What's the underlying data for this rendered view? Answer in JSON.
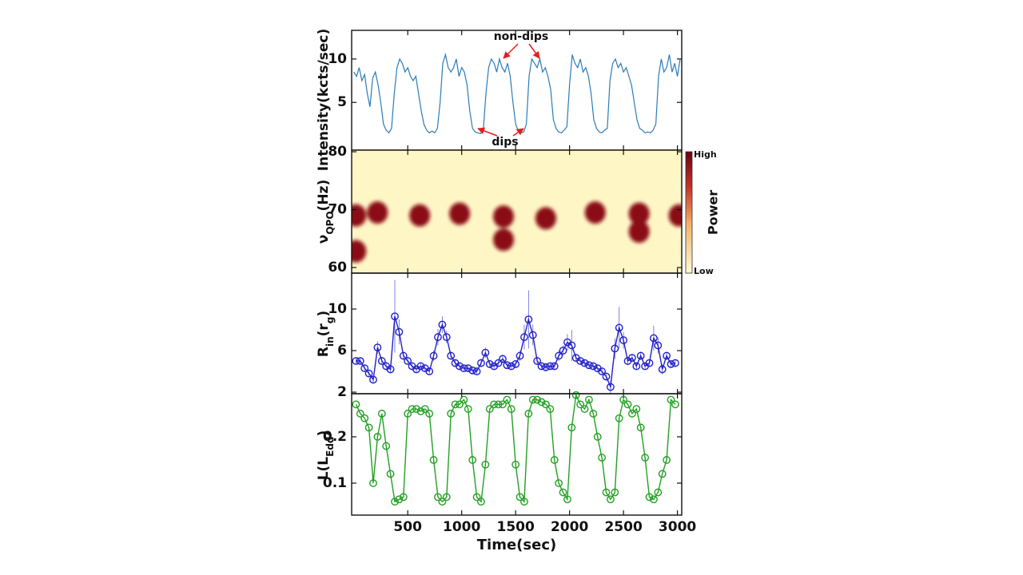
{
  "chart_data": [
    {
      "type": "line",
      "ylabel": [
        "Intensity(kcts/sec)"
      ],
      "color": "#2b7bb9",
      "xlim": [
        -20,
        3040
      ],
      "ylim": [
        -0.5,
        13.3
      ],
      "yticks": [
        5,
        10
      ],
      "x": [
        0,
        25,
        50,
        75,
        100,
        125,
        150,
        175,
        200,
        225,
        250,
        275,
        300,
        325,
        350,
        375,
        400,
        425,
        450,
        475,
        500,
        525,
        550,
        575,
        600,
        625,
        650,
        675,
        700,
        725,
        750,
        775,
        800,
        825,
        850,
        875,
        900,
        925,
        950,
        975,
        1000,
        1025,
        1050,
        1075,
        1100,
        1125,
        1150,
        1175,
        1200,
        1225,
        1250,
        1275,
        1300,
        1325,
        1350,
        1375,
        1400,
        1425,
        1450,
        1475,
        1500,
        1525,
        1550,
        1575,
        1600,
        1625,
        1650,
        1675,
        1700,
        1725,
        1750,
        1775,
        1800,
        1825,
        1850,
        1875,
        1900,
        1925,
        1950,
        1975,
        2000,
        2025,
        2050,
        2075,
        2100,
        2125,
        2150,
        2175,
        2200,
        2225,
        2250,
        2275,
        2300,
        2325,
        2350,
        2375,
        2400,
        2425,
        2450,
        2475,
        2500,
        2525,
        2550,
        2575,
        2600,
        2625,
        2650,
        2675,
        2700,
        2725,
        2750,
        2775,
        2800,
        2825,
        2850,
        2875,
        2900,
        2925,
        2950,
        2975,
        3000,
        3025
      ],
      "values": [
        8.5,
        8,
        9,
        7.5,
        8.2,
        6,
        4.5,
        7.8,
        8.5,
        7,
        5,
        2.5,
        1.8,
        1.5,
        2,
        6,
        9,
        10,
        9.5,
        8.5,
        9,
        8,
        7.5,
        8,
        6,
        4,
        2.5,
        1.8,
        1.5,
        1.7,
        1.5,
        2,
        5,
        9.5,
        10.5,
        9,
        8.5,
        9,
        10,
        8,
        9,
        8.5,
        7,
        4,
        2,
        1.6,
        1.5,
        1.4,
        1.8,
        6,
        9,
        10,
        9.5,
        8.5,
        10,
        9,
        8.5,
        9.5,
        8,
        5,
        2.5,
        1.7,
        1.5,
        1.6,
        2.5,
        8,
        10,
        9.5,
        9,
        10,
        8.5,
        9,
        8,
        6.5,
        3,
        2,
        1.6,
        1.5,
        1.8,
        2.2,
        7,
        10.5,
        9.5,
        9,
        10,
        8.5,
        9,
        8,
        6,
        3,
        2,
        1.6,
        1.5,
        1.8,
        2,
        7.5,
        9.5,
        10,
        9,
        9.5,
        8.5,
        9,
        8,
        7,
        5,
        3,
        2,
        1.8,
        1.5,
        1.6,
        1.5,
        1.8,
        2.5,
        8,
        10,
        8.5,
        9,
        10.5,
        8.5,
        9.5,
        8,
        10
      ],
      "annotations": [
        "non-dips",
        "dips"
      ]
    },
    {
      "type": "heatmap",
      "ylabel": [
        "ν",
        "QPO",
        "(Hz)"
      ],
      "color": "#8a0a16",
      "background": "#fff6c6",
      "xlim": [
        -20,
        3040
      ],
      "ylim": [
        59.03,
        80.28
      ],
      "yticks": [
        60,
        70,
        80
      ],
      "x": [
        19,
        219,
        611,
        981,
        1388,
        1780,
        2238,
        2645,
        3015,
        19,
        1388,
        2645
      ],
      "values": [
        69,
        69.5,
        69,
        69.3,
        68.8,
        68.5,
        69.5,
        69.3,
        69,
        62.8,
        64.8,
        66.2
      ],
      "colorbar": {
        "label": "Power",
        "high": "High",
        "low": "Low"
      }
    },
    {
      "type": "errorbar",
      "ylabel": [
        "R",
        "in",
        "(r",
        "g",
        ")"
      ],
      "color": "#2020c8",
      "xlim": [
        -20,
        3040
      ],
      "ylim": [
        1.85,
        13.46
      ],
      "yticks": [
        2,
        6,
        10
      ],
      "x": [
        20,
        60,
        100,
        140,
        180,
        220,
        260,
        300,
        340,
        380,
        420,
        460,
        500,
        540,
        580,
        620,
        660,
        700,
        740,
        780,
        820,
        860,
        900,
        940,
        980,
        1020,
        1060,
        1100,
        1140,
        1180,
        1220,
        1260,
        1300,
        1340,
        1380,
        1420,
        1460,
        1500,
        1540,
        1580,
        1620,
        1660,
        1700,
        1740,
        1780,
        1820,
        1860,
        1900,
        1940,
        1980,
        2020,
        2060,
        2100,
        2140,
        2180,
        2220,
        2260,
        2300,
        2340,
        2380,
        2420,
        2460,
        2500,
        2540,
        2580,
        2620,
        2660,
        2700,
        2740,
        2780,
        2820,
        2860,
        2900,
        2940,
        2980
      ],
      "values": [
        5,
        5,
        4.3,
        3.8,
        3.2,
        6.3,
        5,
        4.5,
        4.2,
        9.3,
        7.8,
        5.5,
        5,
        4.5,
        4.2,
        4.5,
        4.3,
        4,
        5.5,
        7.3,
        8.5,
        7.3,
        5.5,
        4.8,
        4.5,
        4.3,
        4.3,
        4.1,
        4,
        4.8,
        5.8,
        4.7,
        4.5,
        4.8,
        5.2,
        4.6,
        4.5,
        4.7,
        5.5,
        7.3,
        9,
        7.5,
        5,
        4.5,
        4.4,
        4.5,
        4.5,
        5.5,
        6,
        6.8,
        6.5,
        5.3,
        5,
        4.8,
        4.6,
        4.5,
        4.3,
        4,
        3.5,
        2.5,
        6.2,
        8.2,
        7,
        5,
        5.3,
        4.5,
        5.5,
        4.5,
        4.8,
        7.2,
        6.5,
        4.2,
        5.5,
        4.7,
        4.8
      ],
      "errors": [
        0.3,
        0.3,
        0.3,
        0.3,
        0.3,
        0.6,
        0.4,
        0.4,
        0.4,
        3.5,
        1.2,
        0.4,
        0.3,
        0.3,
        0.3,
        0.3,
        0.3,
        0.3,
        0.5,
        0.8,
        0.8,
        0.6,
        0.4,
        0.3,
        0.3,
        0.3,
        0.3,
        0.3,
        0.3,
        0.4,
        0.5,
        0.3,
        0.3,
        0.3,
        0.4,
        0.3,
        0.3,
        0.3,
        0.5,
        1.2,
        2.8,
        1,
        0.4,
        0.3,
        0.3,
        0.3,
        0.3,
        0.5,
        0.5,
        0.8,
        1.5,
        0.4,
        0.3,
        0.3,
        0.3,
        0.3,
        0.3,
        0.3,
        0.3,
        0.6,
        1,
        2,
        0.8,
        0.4,
        0.4,
        0.3,
        0.4,
        0.3,
        0.3,
        1.2,
        0.8,
        0.5,
        0.4,
        0.3,
        0.3
      ]
    },
    {
      "type": "line-markers",
      "ylabel": [
        "L(L",
        "Edd",
        ")"
      ],
      "color": "#22a022",
      "xlim": [
        -20,
        3040
      ],
      "ylim": [
        0.031,
        0.293
      ],
      "yticks": [
        0.1,
        0.2
      ],
      "xticks": [
        500,
        1000,
        1500,
        2000,
        2500,
        3000
      ],
      "xlabel": "Time(sec)",
      "x": [
        20,
        60,
        100,
        140,
        180,
        220,
        260,
        300,
        340,
        380,
        420,
        460,
        500,
        540,
        580,
        620,
        660,
        700,
        740,
        780,
        820,
        860,
        900,
        940,
        980,
        1020,
        1060,
        1100,
        1140,
        1180,
        1220,
        1260,
        1300,
        1340,
        1380,
        1420,
        1460,
        1500,
        1540,
        1580,
        1620,
        1660,
        1700,
        1740,
        1780,
        1820,
        1860,
        1900,
        1940,
        1980,
        2020,
        2060,
        2100,
        2140,
        2180,
        2220,
        2260,
        2300,
        2340,
        2380,
        2420,
        2460,
        2500,
        2540,
        2580,
        2620,
        2660,
        2700,
        2740,
        2780,
        2820,
        2860,
        2900,
        2940,
        2980
      ],
      "values": [
        0.27,
        0.25,
        0.24,
        0.22,
        0.1,
        0.2,
        0.25,
        0.18,
        0.12,
        0.06,
        0.065,
        0.07,
        0.25,
        0.26,
        0.26,
        0.255,
        0.26,
        0.25,
        0.15,
        0.07,
        0.06,
        0.07,
        0.25,
        0.27,
        0.27,
        0.28,
        0.26,
        0.15,
        0.07,
        0.06,
        0.14,
        0.26,
        0.27,
        0.27,
        0.27,
        0.28,
        0.26,
        0.14,
        0.07,
        0.06,
        0.25,
        0.28,
        0.28,
        0.275,
        0.27,
        0.26,
        0.15,
        0.1,
        0.08,
        0.065,
        0.22,
        0.29,
        0.27,
        0.26,
        0.28,
        0.25,
        0.2,
        0.155,
        0.08,
        0.065,
        0.08,
        0.24,
        0.28,
        0.27,
        0.25,
        0.26,
        0.22,
        0.155,
        0.07,
        0.065,
        0.08,
        0.12,
        0.15,
        0.28,
        0.27
      ]
    }
  ]
}
